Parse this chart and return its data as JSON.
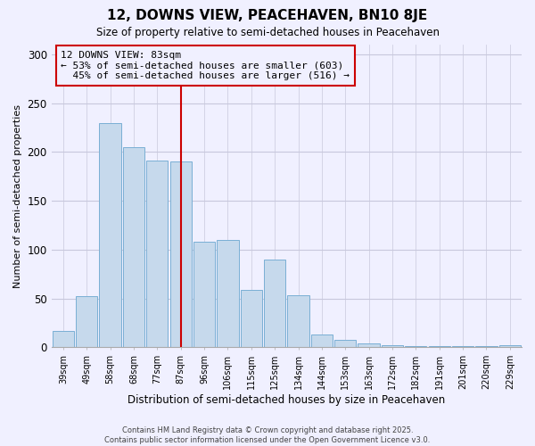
{
  "title": "12, DOWNS VIEW, PEACEHAVEN, BN10 8JE",
  "subtitle": "Size of property relative to semi-detached houses in Peacehaven",
  "xlabel": "Distribution of semi-detached houses by size in Peacehaven",
  "ylabel": "Number of semi-detached properties",
  "categories": [
    "39sqm",
    "49sqm",
    "58sqm",
    "68sqm",
    "77sqm",
    "87sqm",
    "96sqm",
    "106sqm",
    "115sqm",
    "125sqm",
    "134sqm",
    "144sqm",
    "153sqm",
    "163sqm",
    "172sqm",
    "182sqm",
    "191sqm",
    "201sqm",
    "220sqm",
    "229sqm"
  ],
  "values": [
    17,
    52,
    230,
    205,
    191,
    190,
    108,
    110,
    59,
    90,
    53,
    13,
    8,
    4,
    2,
    1,
    1,
    1,
    1,
    2
  ],
  "bar_color": "#c6d9ec",
  "bar_edge_color": "#7aafd4",
  "highlight_bar_index": 5,
  "highlight_line_color": "#cc0000",
  "annotation_title": "12 DOWNS VIEW: 83sqm",
  "annotation_line1": "← 53% of semi-detached houses are smaller (603)",
  "annotation_line2": "  45% of semi-detached houses are larger (516) →",
  "annotation_box_edge": "#cc0000",
  "ylim": [
    0,
    310
  ],
  "yticks": [
    0,
    50,
    100,
    150,
    200,
    250,
    300
  ],
  "footer1": "Contains HM Land Registry data © Crown copyright and database right 2025.",
  "footer2": "Contains public sector information licensed under the Open Government Licence v3.0.",
  "bg_color": "#f0f0ff",
  "grid_color": "#c8c8dc"
}
